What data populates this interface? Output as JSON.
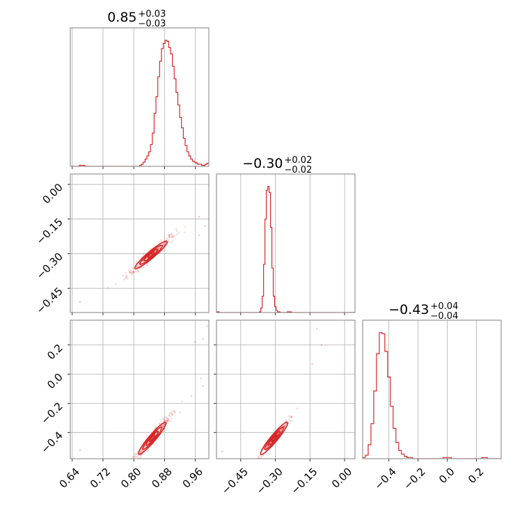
{
  "chart_data": {
    "type": "corner",
    "color": "#d62728",
    "parameters": [
      {
        "title_main": "0.85",
        "title_plus": "+0.03",
        "title_minus": "−0.03",
        "range": [
          0.635,
          0.995
        ],
        "ticks": [
          0.64,
          0.72,
          0.8,
          0.88,
          0.96
        ],
        "tick_labels": [
          "0.64",
          "0.72",
          "0.80",
          "0.88",
          "0.96"
        ]
      },
      {
        "title_main": "−0.30",
        "title_plus": "+0.02",
        "title_minus": "−0.02",
        "range": [
          -0.555,
          0.045
        ],
        "ticks": [
          -0.45,
          -0.3,
          -0.15,
          0.0
        ],
        "tick_labels": [
          "−0.45",
          "−0.30",
          "−0.15",
          "0.00"
        ]
      },
      {
        "title_main": "−0.43",
        "title_plus": "+0.04",
        "title_minus": "−0.04",
        "range": [
          -0.58,
          0.37
        ],
        "ticks": [
          -0.4,
          -0.2,
          0.0,
          0.2
        ],
        "tick_labels": [
          "−0.4",
          "−0.2",
          "0.0",
          "0.2"
        ]
      }
    ],
    "diagonal_histograms": [
      {
        "param": 0,
        "bins": [
          0.635,
          0.995
        ],
        "counts": [
          0,
          0,
          0,
          0,
          0,
          1,
          1,
          1,
          0,
          0,
          0,
          0,
          0,
          0,
          0,
          0,
          0,
          0,
          0,
          0,
          0,
          0,
          0,
          0,
          0,
          0,
          0,
          0,
          0,
          0,
          0,
          0,
          0,
          0,
          0,
          0,
          0,
          0,
          1,
          2,
          4,
          7,
          10,
          14,
          21,
          32,
          51,
          67,
          86,
          101,
          113,
          118,
          121,
          120,
          114,
          108,
          96,
          84,
          71,
          59,
          47,
          37,
          27,
          20,
          14,
          10,
          7,
          5,
          4,
          3,
          2,
          2,
          1,
          1,
          2,
          3
        ]
      },
      {
        "param": 1,
        "bins": [
          -0.555,
          0.045
        ],
        "counts": [
          1,
          1,
          0,
          0,
          0,
          0,
          0,
          0,
          0,
          0,
          0,
          0,
          0,
          0,
          0,
          0,
          0,
          0,
          0,
          0,
          0,
          0,
          0,
          0,
          0,
          0,
          0,
          0,
          0,
          0,
          0,
          1,
          6,
          22,
          65,
          126,
          165,
          170,
          162,
          115,
          60,
          22,
          8,
          3,
          1,
          1,
          0,
          0,
          0,
          0,
          0,
          1,
          1,
          1,
          0,
          0,
          0,
          0,
          0,
          0,
          0,
          0,
          0,
          0,
          0,
          0,
          0,
          0,
          0,
          0,
          0,
          0,
          0,
          0,
          0,
          0,
          0,
          0,
          0,
          0,
          0,
          0,
          0,
          0,
          0,
          0,
          0,
          0,
          0,
          0,
          0,
          0,
          0,
          0,
          0,
          0,
          0,
          0,
          0,
          0
        ]
      },
      {
        "param": 2,
        "bins": [
          -0.58,
          0.37
        ],
        "counts": [
          1,
          3,
          12,
          30,
          58,
          90,
          108,
          107,
          92,
          70,
          45,
          26,
          14,
          7,
          4,
          2,
          1,
          1,
          0,
          0,
          0,
          0,
          0,
          0,
          0,
          0,
          0,
          0,
          0,
          1,
          1,
          1,
          0,
          0,
          0,
          0,
          0,
          0,
          0,
          0,
          0,
          0,
          0,
          1,
          1,
          0,
          0,
          0,
          0,
          0
        ]
      }
    ],
    "pair_panels": [
      {
        "x_param": 0,
        "y_param": 1,
        "mean": [
          0.845,
          -0.305
        ],
        "slope": 1.4,
        "spread": 0.012
      },
      {
        "x_param": 0,
        "y_param": 2,
        "mean": [
          0.848,
          -0.44
        ],
        "slope": 3.1,
        "spread": 0.018
      },
      {
        "x_param": 1,
        "y_param": 2,
        "mean": [
          -0.305,
          -0.44
        ],
        "slope": 1.9,
        "spread": 0.015
      }
    ],
    "outliers": [
      {
        "panel": [
          1,
          0
        ],
        "points": [
          [
            0.985,
            -0.18
          ],
          [
            0.97,
            -0.14
          ],
          [
            0.97,
            -0.22
          ],
          [
            0.66,
            -0.51
          ]
        ]
      },
      {
        "panel": [
          2,
          0
        ],
        "points": [
          [
            0.99,
            0.33
          ],
          [
            0.98,
            0.24
          ],
          [
            0.96,
            0.22
          ],
          [
            0.975,
            -0.03
          ],
          [
            0.98,
            -0.08
          ],
          [
            0.95,
            -0.15
          ],
          [
            0.66,
            -0.52
          ]
        ]
      },
      {
        "panel": [
          2,
          1
        ],
        "points": [
          [
            -0.12,
            0.31
          ],
          [
            -0.1,
            0.2
          ],
          [
            -0.14,
            0.07
          ],
          [
            -0.53,
            -0.53
          ]
        ]
      }
    ],
    "grid": true
  }
}
